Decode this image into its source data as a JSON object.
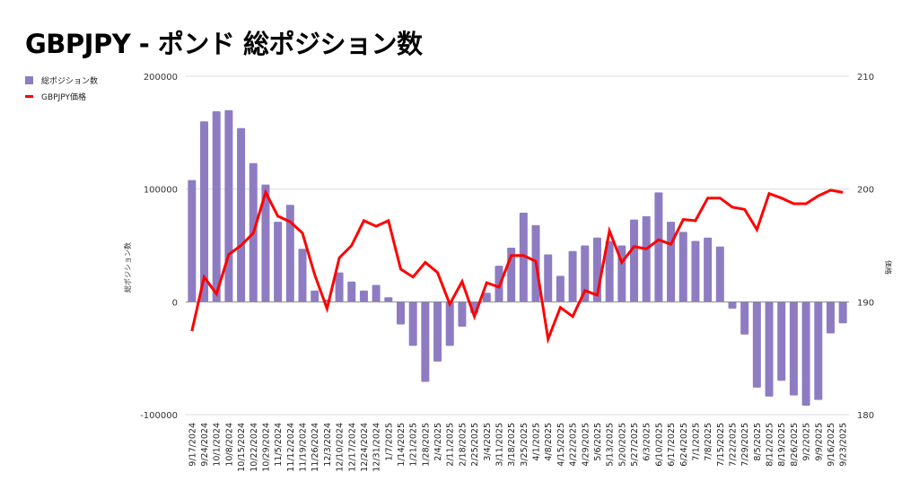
{
  "title": "GBPJPY - ポンド 総ポジション数",
  "legend": {
    "bars": "総ポジション数",
    "line": "GBPJPY価格"
  },
  "colors": {
    "bars": "#8e7cc3",
    "line": "#ff0000",
    "grid": "#dddddd",
    "zero": "#888888"
  },
  "chart_data": {
    "type": "bar+line",
    "title": "GBPJPY - ポンド 総ポジション数",
    "ylabel_left": "総ポジション数",
    "ylabel_right": "価格",
    "ylim_left": [
      -100000,
      200000
    ],
    "yticks_left": [
      "200000",
      "100000",
      "0",
      "-100000"
    ],
    "yticks_left_values": [
      200000,
      100000,
      0,
      -100000
    ],
    "ylim_right": [
      180,
      210
    ],
    "yticks_right": [
      "210",
      "200",
      "190",
      "180"
    ],
    "yticks_right_values": [
      210,
      200,
      190,
      180
    ],
    "legend_position": "top-left",
    "categories": [
      "9/17/2024",
      "9/24/2024",
      "10/1/2024",
      "10/8/2024",
      "10/15/2024",
      "10/22/2024",
      "10/29/2024",
      "11/5/2024",
      "11/12/2024",
      "11/19/2024",
      "11/26/2024",
      "12/3/2024",
      "12/10/2024",
      "12/17/2024",
      "12/24/2024",
      "12/31/2024",
      "1/7/2025",
      "1/14/2025",
      "1/21/2025",
      "1/28/2025",
      "2/4/2025",
      "2/11/2025",
      "2/18/2025",
      "2/25/2025",
      "3/4/2025",
      "3/11/2025",
      "3/18/2025",
      "3/25/2025",
      "4/1/2025",
      "4/8/2025",
      "4/15/2025",
      "4/22/2025",
      "4/29/2025",
      "5/6/2025",
      "5/13/2025",
      "5/20/2025",
      "5/27/2025",
      "6/3/2025",
      "6/10/2025",
      "6/17/2025",
      "6/24/2025",
      "7/1/2025",
      "7/8/2025",
      "7/15/2025",
      "7/22/2025",
      "7/29/2025",
      "8/5/2025",
      "8/12/2025",
      "8/19/2025",
      "8/26/2025",
      "9/2/2025",
      "9/9/2025",
      "9/16/2025",
      "9/23/2025"
    ],
    "series": [
      {
        "name": "総ポジション数",
        "type": "bar",
        "axis": "left",
        "values": [
          108000,
          160000,
          169000,
          170000,
          154000,
          123000,
          104000,
          71000,
          86000,
          47000,
          10000,
          2000,
          26000,
          18000,
          10000,
          15000,
          4000,
          -20000,
          -39000,
          -71000,
          -53000,
          -39000,
          -22000,
          -10000,
          8000,
          32000,
          48000,
          79000,
          68000,
          42000,
          23000,
          45000,
          50000,
          57000,
          54000,
          50000,
          73000,
          76000,
          97000,
          71000,
          62000,
          54000,
          57000,
          49000,
          -6000,
          -29000,
          -76000,
          -84000,
          -70000,
          -83000,
          -92000,
          -87000,
          -28000,
          -19000
        ]
      },
      {
        "name": "GBPJPY価格",
        "type": "line",
        "axis": "right",
        "values": [
          187.4,
          192.2,
          190.7,
          194.2,
          195.0,
          196.1,
          199.7,
          197.6,
          197.1,
          196.1,
          192.4,
          189.4,
          193.9,
          195.0,
          197.2,
          196.7,
          197.2,
          192.9,
          192.2,
          193.5,
          192.6,
          189.8,
          191.8,
          188.7,
          191.7,
          191.3,
          194.1,
          194.1,
          193.6,
          186.7,
          189.5,
          188.7,
          191.0,
          190.6,
          196.3,
          193.5,
          194.9,
          194.7,
          195.5,
          195.1,
          197.3,
          197.2,
          199.2,
          199.2,
          198.4,
          198.2,
          196.4,
          199.6,
          199.2,
          198.7,
          198.7,
          199.4,
          199.9,
          199.7
        ]
      }
    ]
  }
}
